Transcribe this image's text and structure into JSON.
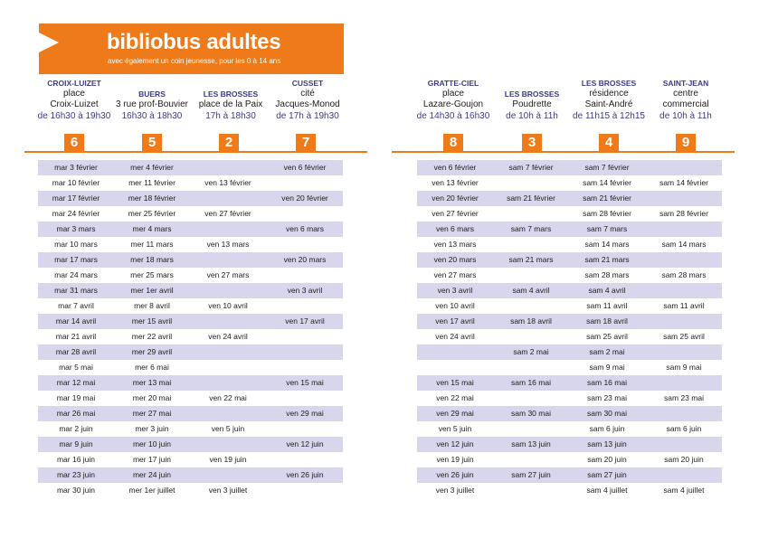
{
  "banner": {
    "title": "bibliobus adultes",
    "subtitle": "avec également un coin jeunesse, pour les 0 à 14 ans"
  },
  "left": {
    "columns": [
      {
        "location": "CROIX-LUIZET",
        "line1": "place",
        "line2": "Croix-Luizet",
        "time": "de 16h30 à 19h30",
        "number": "6"
      },
      {
        "location": "BUERS",
        "line1": "",
        "line2": "3 rue prof-Bouvier",
        "time": "16h30 à 18h30",
        "number": "5"
      },
      {
        "location": "LES BROSSES",
        "line1": "",
        "line2": "place de la Paix",
        "time": "17h à 18h30",
        "number": "2"
      },
      {
        "location": "CUSSET",
        "line1": "cité",
        "line2": "Jacques-Monod",
        "time": "de 17h à 19h30",
        "number": "7"
      }
    ],
    "rows": [
      [
        "mar 3 février",
        "mer 4 février",
        "",
        "ven 6 février"
      ],
      [
        "mar 10 février",
        "mer 11 février",
        "ven 13 février",
        ""
      ],
      [
        "mar 17 février",
        "mer 18 février",
        "",
        "ven 20 février"
      ],
      [
        "mar 24 février",
        "mer 25 février",
        "ven 27 février",
        ""
      ],
      [
        "mar 3 mars",
        "mer 4 mars",
        "",
        "ven 6 mars"
      ],
      [
        "mar 10 mars",
        "mer 11 mars",
        "ven 13 mars",
        ""
      ],
      [
        "mar 17 mars",
        "mer 18 mars",
        "",
        "ven 20 mars"
      ],
      [
        "mar 24 mars",
        "mer 25 mars",
        "ven 27 mars",
        ""
      ],
      [
        "mar 31 mars",
        "mer 1er avril",
        "",
        "ven 3 avril"
      ],
      [
        "mar 7 avril",
        "mer 8 avril",
        "ven 10 avril",
        ""
      ],
      [
        "mar 14 avril",
        "mer 15 avril",
        "",
        "ven 17 avril"
      ],
      [
        "mar 21 avril",
        "mer 22 avril",
        "ven 24 avril",
        ""
      ],
      [
        "mar 28 avril",
        "mer 29 avril",
        "",
        ""
      ],
      [
        "mar 5 mai",
        "mer 6 mai",
        "",
        ""
      ],
      [
        "mar 12 mai",
        "mer 13 mai",
        "",
        "ven 15 mai"
      ],
      [
        "mar 19 mai",
        "mer 20 mai",
        "ven 22 mai",
        ""
      ],
      [
        "mar 26 mai",
        "mer 27 mai",
        "",
        "ven 29 mai"
      ],
      [
        "mar 2 juin",
        "mer 3 juin",
        "ven 5 juin",
        ""
      ],
      [
        "mar 9 juin",
        "mer 10 juin",
        "",
        "ven 12 juin"
      ],
      [
        "mar 16 juin",
        "mer 17 juin",
        "ven 19 juin",
        ""
      ],
      [
        "mar 23 juin",
        "mer 24 juin",
        "",
        "ven 26 juin"
      ],
      [
        "mar 30 juin",
        "mer 1er juillet",
        "ven 3 juillet",
        ""
      ]
    ]
  },
  "right": {
    "columns": [
      {
        "location": "GRATTE-CIEL",
        "line1": "place",
        "line2": "Lazare-Goujon",
        "time": "de 14h30 à 16h30",
        "number": "8"
      },
      {
        "location": "LES BROSSES",
        "line1": "",
        "line2": "Poudrette",
        "time": "de 10h à 11h",
        "number": "3"
      },
      {
        "location": "LES BROSSES",
        "line1": "résidence",
        "line2": "Saint-André",
        "time": "de 11h15 à 12h15",
        "number": "4"
      },
      {
        "location": "SAINT-JEAN",
        "line1": "centre",
        "line2": "commercial",
        "time": "de 10h à 11h",
        "number": "9"
      }
    ],
    "rows": [
      [
        "ven 6 février",
        "sam 7 février",
        "sam 7 février",
        ""
      ],
      [
        "ven 13 février",
        "",
        "sam 14 février",
        "sam 14 février"
      ],
      [
        "ven 20 février",
        "sam 21 février",
        "sam 21 février",
        ""
      ],
      [
        "ven 27 février",
        "",
        "sam 28 février",
        "sam 28 février"
      ],
      [
        "ven 6 mars",
        "sam 7 mars",
        "sam 7 mars",
        ""
      ],
      [
        "ven 13 mars",
        "",
        "sam 14 mars",
        "sam 14 mars"
      ],
      [
        "ven 20 mars",
        "sam 21 mars",
        "sam 21 mars",
        ""
      ],
      [
        "ven 27 mars",
        "",
        "sam 28 mars",
        "sam 28 mars"
      ],
      [
        "ven 3 avril",
        "sam 4 avril",
        "sam 4 avril",
        ""
      ],
      [
        "ven 10 avril",
        "",
        "sam 11 avril",
        "sam 11 avril"
      ],
      [
        "ven 17 avril",
        "sam 18 avril",
        "sam 18 avril",
        ""
      ],
      [
        "ven 24 avril",
        "",
        "sam 25 avril",
        "sam 25 avril"
      ],
      [
        "",
        "sam 2 mai",
        "sam 2 mai",
        ""
      ],
      [
        "",
        "",
        "sam 9 mai",
        "sam 9 mai"
      ],
      [
        "ven 15 mai",
        "sam 16 mai",
        "sam 16 mai",
        ""
      ],
      [
        "ven 22 mai",
        "",
        "sam 23 mai",
        "sam 23 mai"
      ],
      [
        "ven 29 mai",
        "sam 30 mai",
        "sam 30 mai",
        ""
      ],
      [
        "ven 5 juin",
        "",
        "sam 6 juin",
        "sam 6 juin"
      ],
      [
        "ven 12 juin",
        "sam 13 juin",
        "sam 13 juin",
        ""
      ],
      [
        "ven 19 juin",
        "",
        "sam 20 juin",
        "sam 20 juin"
      ],
      [
        "ven 26 juin",
        "sam 27 juin",
        "sam 27 juin",
        ""
      ],
      [
        "ven 3 juillet",
        "",
        "sam 4 juillet",
        "sam 4 juillet"
      ]
    ]
  }
}
